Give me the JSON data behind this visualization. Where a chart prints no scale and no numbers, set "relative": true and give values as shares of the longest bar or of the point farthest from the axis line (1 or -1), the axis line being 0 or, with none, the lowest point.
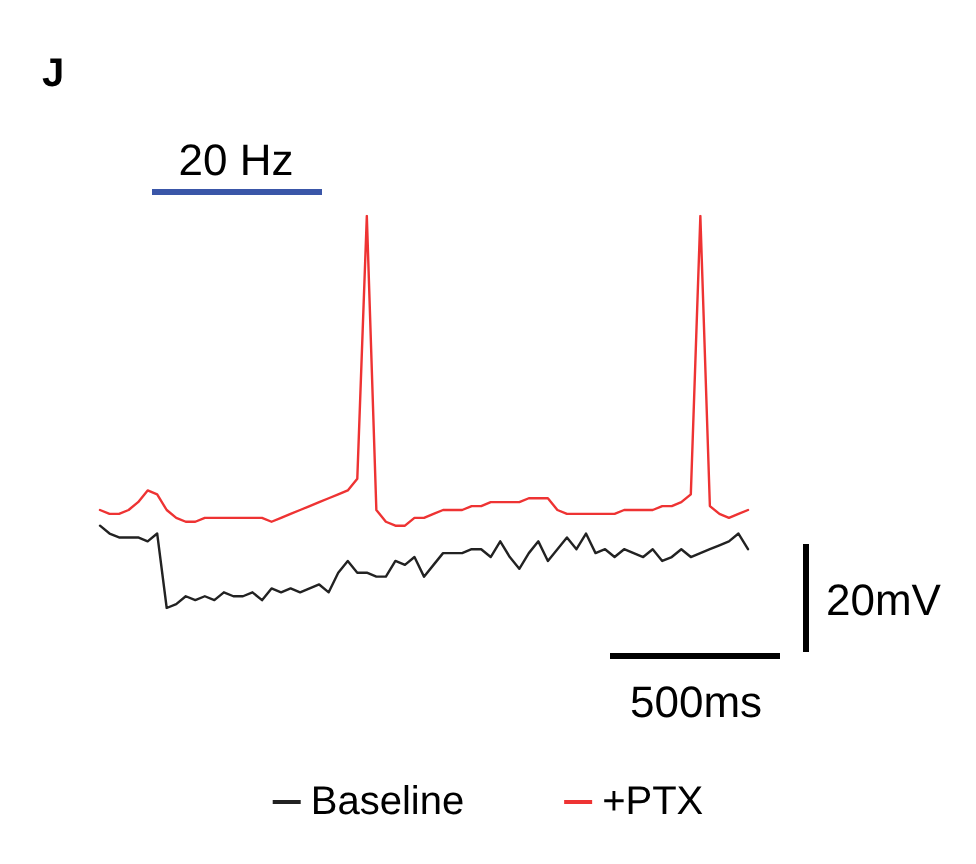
{
  "chart_data": {
    "type": "line",
    "title": "J",
    "relative": true,
    "legend": "bottom",
    "line_style": "solid",
    "grid": false,
    "categories": [
      null,
      null,
      null,
      null,
      null,
      null,
      null,
      null,
      null,
      null,
      null,
      null,
      null,
      null,
      null,
      null,
      null,
      null,
      null,
      null,
      null,
      null,
      null,
      null,
      null,
      null,
      null,
      null,
      null,
      null,
      null,
      null,
      null,
      null,
      null,
      null,
      null,
      null,
      null,
      null,
      null,
      null,
      null,
      null,
      null,
      null,
      null,
      null,
      null,
      null,
      null,
      null,
      null,
      null,
      null,
      null,
      null,
      null,
      null,
      null,
      null,
      null,
      null,
      null,
      null,
      null,
      null,
      null,
      null
    ],
    "series": [
      {
        "name": "Baseline",
        "color": "#222222",
        "values": [
          0.21,
          0.19,
          0.18,
          0.18,
          0.18,
          0.17,
          0.19,
          0,
          0.01,
          0.03,
          0.02,
          0.03,
          0.02,
          0.04,
          0.03,
          0.03,
          0.04,
          0.02,
          0.05,
          0.04,
          0.05,
          0.04,
          0.05,
          0.06,
          0.04,
          0.09,
          0.12,
          0.09,
          0.09,
          0.08,
          0.08,
          0.12,
          0.11,
          0.13,
          0.08,
          0.11,
          0.14,
          0.14,
          0.14,
          0.15,
          0.15,
          0.13,
          0.17,
          0.13,
          0.1,
          0.14,
          0.17,
          0.12,
          0.15,
          0.18,
          0.15,
          0.19,
          0.14,
          0.15,
          0.13,
          0.15,
          0.14,
          0.13,
          0.15,
          0.12,
          0.13,
          0.15,
          0.13,
          0.14,
          0.15,
          0.16,
          0.17,
          0.19,
          0.15
        ]
      },
      {
        "name": "+PTX",
        "color": "#ee3333",
        "values": [
          0.25,
          0.24,
          0.24,
          0.25,
          0.27,
          0.3,
          0.29,
          0.25,
          0.23,
          0.22,
          0.22,
          0.23,
          0.23,
          0.23,
          0.23,
          0.23,
          0.23,
          0.23,
          0.22,
          0.23,
          0.24,
          0.25,
          0.26,
          0.27,
          0.28,
          0.29,
          0.3,
          0.33,
          1,
          0.25,
          0.22,
          0.21,
          0.21,
          0.23,
          0.23,
          0.24,
          0.25,
          0.25,
          0.25,
          0.26,
          0.26,
          0.27,
          0.27,
          0.27,
          0.27,
          0.28,
          0.28,
          0.28,
          0.25,
          0.24,
          0.24,
          0.24,
          0.24,
          0.24,
          0.24,
          0.25,
          0.25,
          0.25,
          0.25,
          0.26,
          0.26,
          0.27,
          0.29,
          1,
          0.26,
          0.24,
          0.23,
          0.24,
          0.25
        ]
      }
    ],
    "annotations": [
      "20 Hz",
      "20mV",
      "500ms"
    ]
  }
}
